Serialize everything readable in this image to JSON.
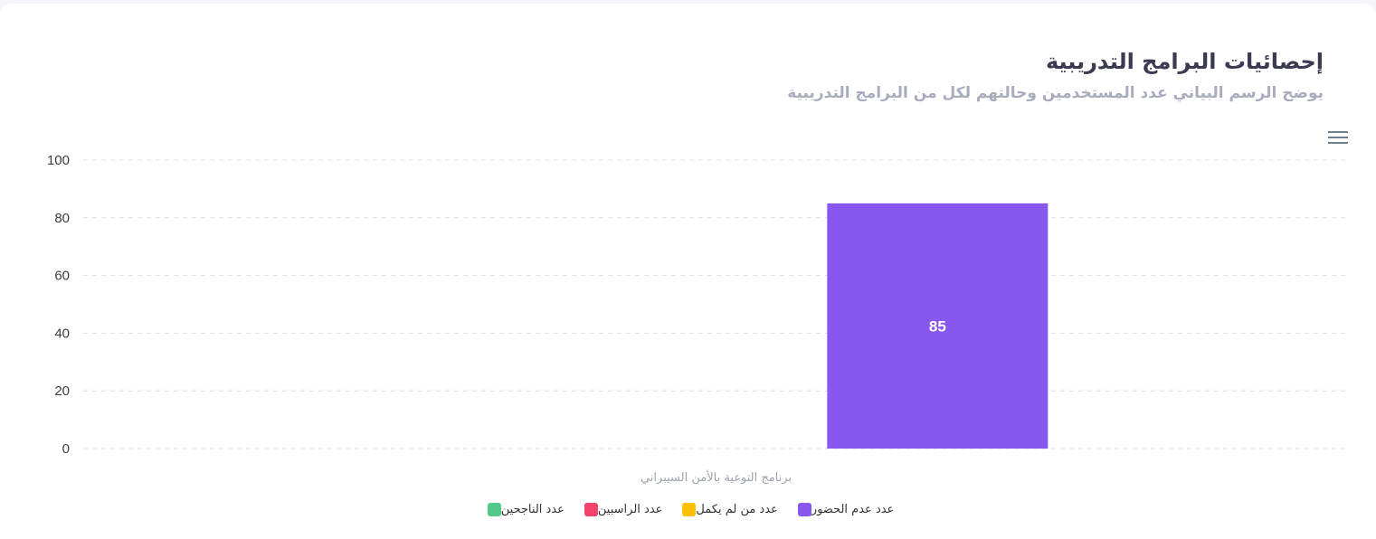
{
  "header": {
    "title": "إحصائيات البرامج التدريبية",
    "subtitle": "يوضح الرسم البياني عدد المستخدمين وحالتهم لكل من البرامج التدريبية"
  },
  "toolbar": {
    "menu_icon": "hamburger-menu-icon"
  },
  "chart_data": {
    "type": "bar",
    "stacked": true,
    "categories": [
      "برنامج التوعية بالأمن السيبراني"
    ],
    "series": [
      {
        "name": "عدد الناجحين",
        "color": "#52c98b",
        "values": [
          0
        ]
      },
      {
        "name": "عدد الراسبين",
        "color": "#f0446c",
        "values": [
          0
        ]
      },
      {
        "name": "عدد من لم يكمل",
        "color": "#ffc107",
        "values": [
          0
        ]
      },
      {
        "name": "عدد عدم الحضور",
        "color": "#8a57ee",
        "values": [
          85
        ]
      }
    ],
    "y_ticks": [
      0,
      20,
      40,
      60,
      80,
      100
    ],
    "ylim": [
      0,
      100
    ],
    "grid": true,
    "legend_position": "bottom-center",
    "data_labels": true
  }
}
